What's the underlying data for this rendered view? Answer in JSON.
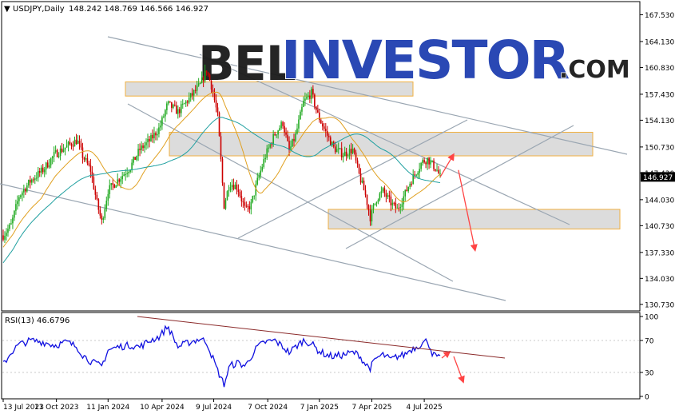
{
  "header": {
    "symbol_tf": "USDJPY,Daily",
    "ohlc": "148.242 148.769 146.566 146.927"
  },
  "watermark": {
    "text_bel": "BEL",
    "text_investor": "INVESTOR",
    "text_com": ".COM"
  },
  "colors": {
    "bull": "#22aa22",
    "bear": "#cc0000",
    "ma_fast": "#e0a020",
    "ma_slow": "#20a0a0",
    "rsi": "#1010e0",
    "zone_fill": "#dcdcdc",
    "zone_border": "#f0b040",
    "channel": "#9aa6b2",
    "arrow": "#ff4444"
  },
  "chart_data": [
    {
      "type": "candlestick",
      "title": "USDJPY,Daily",
      "last_price_label": "146.927",
      "last_price": 146.927,
      "ylim": [
        130.0,
        169.0
      ],
      "y_ticks": [
        130.73,
        134.03,
        137.33,
        140.73,
        144.03,
        147.43,
        150.73,
        154.13,
        157.43,
        160.83,
        164.13,
        167.53
      ],
      "y_tick_labels": [
        "130.730",
        "134.030",
        "137.330",
        "140.730",
        "144.030",
        "147.430",
        "150.730",
        "154.130",
        "157.430",
        "160.830",
        "164.130",
        "167.530"
      ],
      "x_tick_labels": [
        "13 Jul 2023",
        "11 Oct 2023",
        "11 Jan 2024",
        "10 Apr 2024",
        "9 Jul 2024",
        "7 Oct 2024",
        "7 Jan 2025",
        "7 Apr 2025",
        "4 Jul 2025"
      ],
      "price_path": [
        [
          0,
          139.5
        ],
        [
          10,
          140.8
        ],
        [
          20,
          144.5
        ],
        [
          35,
          146.5
        ],
        [
          50,
          147.8
        ],
        [
          65,
          149.8
        ],
        [
          80,
          150.8
        ],
        [
          93,
          151.6
        ],
        [
          100,
          149.6
        ],
        [
          110,
          147.8
        ],
        [
          118,
          143.6
        ],
        [
          124,
          141.2
        ],
        [
          132,
          145.2
        ],
        [
          145,
          146.6
        ],
        [
          160,
          148.2
        ],
        [
          172,
          150.4
        ],
        [
          185,
          151.6
        ],
        [
          197,
          153.2
        ],
        [
          207,
          156.2
        ],
        [
          220,
          155.2
        ],
        [
          235,
          157.0
        ],
        [
          248,
          158.6
        ],
        [
          256,
          160.5
        ],
        [
          263,
          158.2
        ],
        [
          270,
          154.6
        ],
        [
          278,
          143.3
        ],
        [
          285,
          146.2
        ],
        [
          295,
          145.6
        ],
        [
          305,
          142.6
        ],
        [
          312,
          143.4
        ],
        [
          320,
          146.4
        ],
        [
          330,
          149.6
        ],
        [
          342,
          152.4
        ],
        [
          352,
          153.8
        ],
        [
          360,
          150.2
        ],
        [
          368,
          152.2
        ],
        [
          378,
          156.4
        ],
        [
          388,
          157.6
        ],
        [
          396,
          154.8
        ],
        [
          406,
          152.6
        ],
        [
          416,
          150.6
        ],
        [
          428,
          149.8
        ],
        [
          440,
          150.4
        ],
        [
          448,
          147.2
        ],
        [
          456,
          144.6
        ],
        [
          462,
          141.8
        ],
        [
          470,
          144.2
        ],
        [
          478,
          145.1
        ],
        [
          488,
          143.6
        ],
        [
          496,
          142.8
        ],
        [
          505,
          144.6
        ],
        [
          512,
          146.2
        ],
        [
          520,
          147.6
        ],
        [
          527,
          148.8
        ],
        [
          534,
          149.2
        ],
        [
          541,
          148.4
        ],
        [
          546,
          147.8
        ],
        [
          550,
          146.93
        ]
      ],
      "zones": [
        {
          "top": 159.0,
          "bottom": 157.2
        },
        {
          "top": 152.6,
          "bottom": 149.6
        },
        {
          "top": 142.8,
          "bottom": 140.3
        }
      ],
      "arrows": [
        {
          "from": [
            550,
            146.9
          ],
          "to": [
            567,
            149.8
          ]
        },
        {
          "from": [
            573,
            147.8
          ],
          "to": [
            594,
            137.6
          ]
        }
      ]
    },
    {
      "type": "line",
      "title": "RSI(13) 46.6796",
      "ylim": [
        0,
        100
      ],
      "y_ticks": [
        0,
        30,
        70,
        100
      ],
      "y_tick_labels": [
        "0",
        "30",
        "70",
        "100"
      ],
      "series": [
        {
          "name": "RSI(13)",
          "last": 46.6796
        }
      ],
      "rsi_path": [
        [
          0,
          40
        ],
        [
          10,
          55
        ],
        [
          20,
          65
        ],
        [
          35,
          70
        ],
        [
          50,
          68
        ],
        [
          65,
          64
        ],
        [
          80,
          68
        ],
        [
          93,
          62
        ],
        [
          100,
          52
        ],
        [
          110,
          44
        ],
        [
          118,
          40
        ],
        [
          124,
          38
        ],
        [
          132,
          58
        ],
        [
          145,
          62
        ],
        [
          160,
          64
        ],
        [
          172,
          62
        ],
        [
          185,
          70
        ],
        [
          197,
          75
        ],
        [
          207,
          88
        ],
        [
          220,
          62
        ],
        [
          235,
          68
        ],
        [
          248,
          72
        ],
        [
          256,
          68
        ],
        [
          263,
          50
        ],
        [
          270,
          32
        ],
        [
          278,
          15
        ],
        [
          285,
          38
        ],
        [
          295,
          42
        ],
        [
          305,
          38
        ],
        [
          312,
          50
        ],
        [
          320,
          62
        ],
        [
          330,
          68
        ],
        [
          342,
          70
        ],
        [
          352,
          62
        ],
        [
          360,
          55
        ],
        [
          368,
          62
        ],
        [
          378,
          70
        ],
        [
          388,
          66
        ],
        [
          396,
          58
        ],
        [
          406,
          52
        ],
        [
          416,
          50
        ],
        [
          428,
          52
        ],
        [
          440,
          55
        ],
        [
          448,
          52
        ],
        [
          456,
          40
        ],
        [
          462,
          36
        ],
        [
          470,
          48
        ],
        [
          478,
          52
        ],
        [
          488,
          46
        ],
        [
          496,
          50
        ],
        [
          505,
          52
        ],
        [
          512,
          58
        ],
        [
          520,
          62
        ],
        [
          527,
          66
        ],
        [
          534,
          70
        ],
        [
          541,
          52
        ],
        [
          546,
          50
        ],
        [
          550,
          46.68
        ]
      ],
      "resistance_line": [
        [
          172,
          100
        ],
        [
          632,
          48
        ]
      ],
      "arrows": [
        {
          "from": [
            553,
            48
          ],
          "to": [
            563,
            56
          ]
        },
        {
          "from": [
            568,
            50
          ],
          "to": [
            580,
            18
          ]
        }
      ]
    }
  ]
}
